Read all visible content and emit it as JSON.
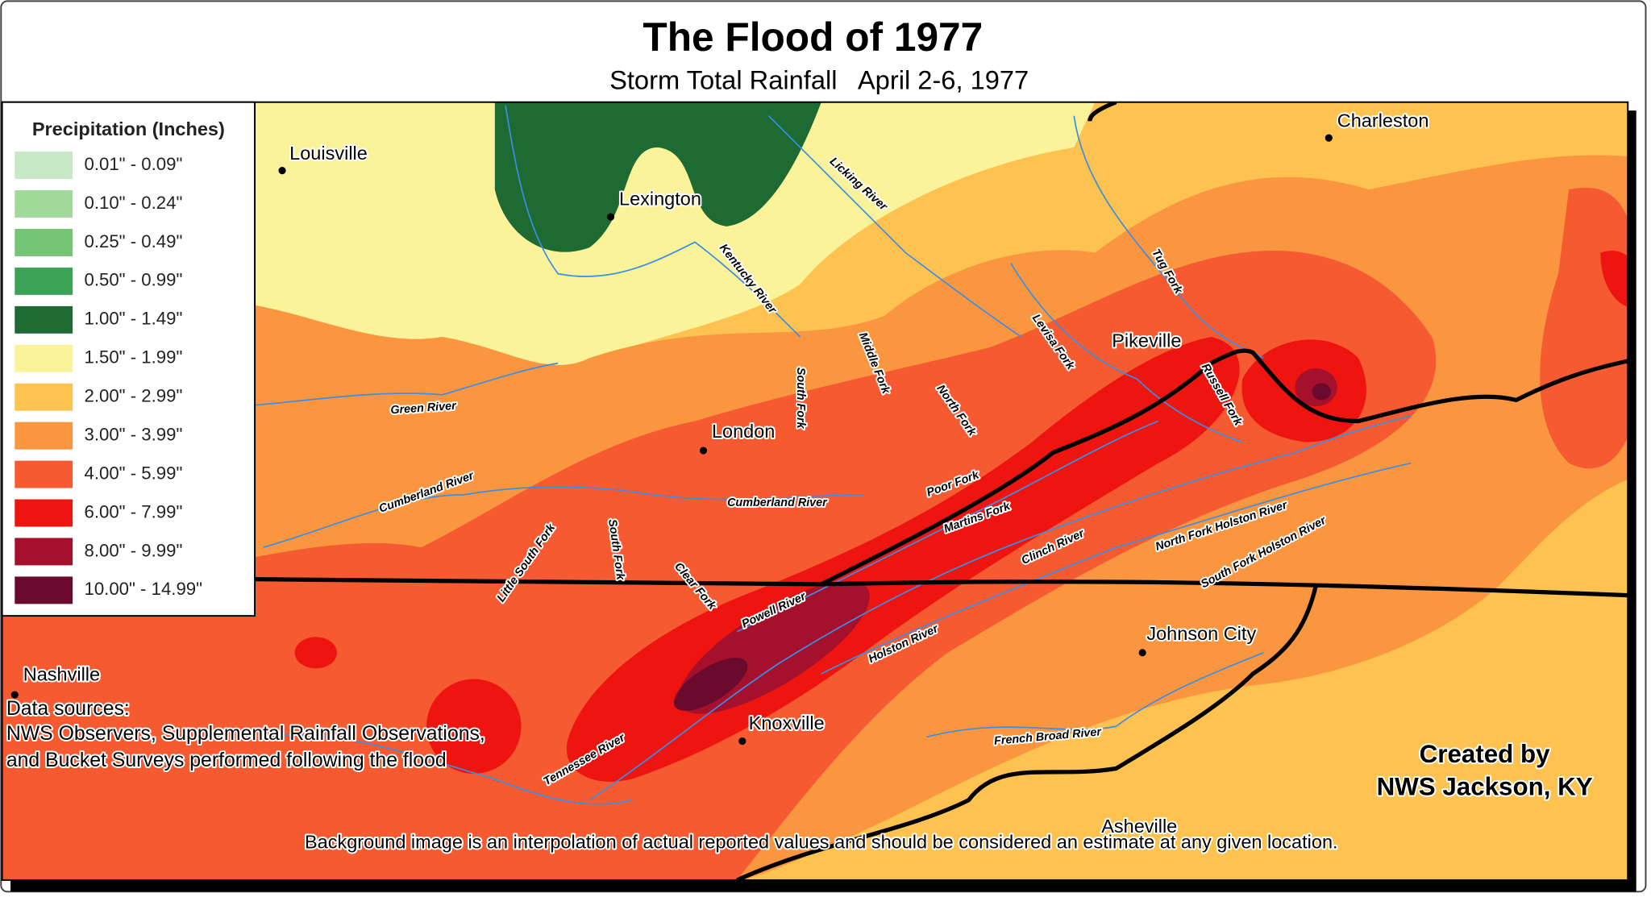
{
  "title": "The Flood of 1977",
  "subtitle": "Storm Total Rainfall   April 2-6, 1977",
  "legend": {
    "title": "Precipitation (Inches)",
    "items": [
      {
        "label": "0.01\" - 0.09\"",
        "color": "#c8e9c6"
      },
      {
        "label": "0.10\" - 0.24\"",
        "color": "#a1d99b"
      },
      {
        "label": "0.25\" - 0.49\"",
        "color": "#74c476"
      },
      {
        "label": "0.50\" - 0.99\"",
        "color": "#3aa356"
      },
      {
        "label": "1.00\" - 1.49\"",
        "color": "#1d6a32"
      },
      {
        "label": "1.50\" - 1.99\"",
        "color": "#fbf39a"
      },
      {
        "label": "2.00\" - 2.99\"",
        "color": "#fdc250"
      },
      {
        "label": "3.00\" - 3.99\"",
        "color": "#fb9640"
      },
      {
        "label": "4.00\" - 5.99\"",
        "color": "#f65a31"
      },
      {
        "label": "6.00\" - 7.99\"",
        "color": "#ee1510"
      },
      {
        "label": "8.00\" - 9.99\"",
        "color": "#a5102c"
      },
      {
        "label": "10.00\" - 14.99\"",
        "color": "#6a0a2c"
      }
    ]
  },
  "cities": [
    "Louisville",
    "Lexington",
    "Charleston",
    "Pikeville",
    "London",
    "Nashville",
    "Knoxville",
    "Johnson City",
    "Asheville"
  ],
  "rivers": [
    "Licking River",
    "Kentucky River",
    "Middle Fork",
    "South Fork",
    "North Fork",
    "Levisa Fork",
    "Tug Fork",
    "Russell Fork",
    "Green River",
    "Cumberland River",
    "Cumberland River",
    "Little South Fork",
    "South Fork",
    "Poor Fork",
    "Martins Fork",
    "Clinch River",
    "North Fork Holston River",
    "South Fork Holston River",
    "Clear Fork",
    "Powell River",
    "Holston River",
    "Tennessee River",
    "French Broad River"
  ],
  "data_sources": {
    "heading": "Data sources:",
    "lines": [
      "NWS Observers, Supplemental Rainfall Observations,",
      "and Bucket Surveys performed following the flood"
    ]
  },
  "credit": [
    "Created by",
    "NWS Jackson, KY"
  ],
  "note": "Background image is an interpolation of actual reported values and should be considered an estimate at any given location."
}
